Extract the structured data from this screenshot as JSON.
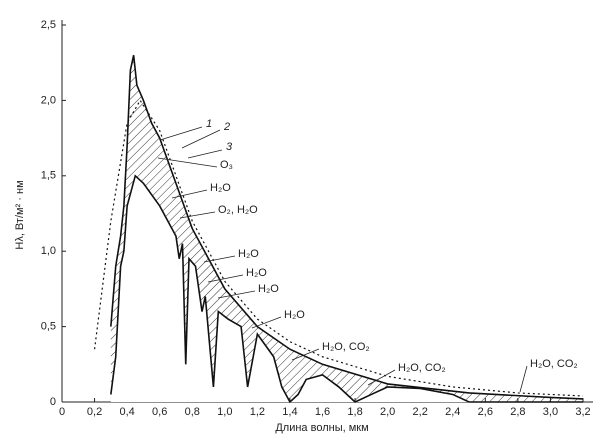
{
  "chart_data": {
    "type": "line",
    "x_label": "Длина волны, мкм",
    "y_label": "Hλ, Вт/м² · нм",
    "xlim": [
      0,
      3.2
    ],
    "ylim": [
      0,
      2.5
    ],
    "xticks": [
      0,
      {
        "value": 0.2,
        "label": "0,2"
      },
      {
        "value": 0.4,
        "label": "0,4"
      },
      {
        "value": 0.6,
        "label": "0,6"
      },
      {
        "value": 0.8,
        "label": "0,8"
      },
      {
        "value": 1.0,
        "label": "1,0"
      },
      {
        "value": 1.2,
        "label": "1,2"
      },
      {
        "value": 1.4,
        "label": "1,4"
      },
      {
        "value": 1.6,
        "label": "1,6"
      },
      {
        "value": 1.8,
        "label": "1,8"
      },
      {
        "value": 2.0,
        "label": "2,0"
      },
      {
        "value": 2.2,
        "label": "2,2"
      },
      {
        "value": 2.4,
        "label": "2,4"
      },
      {
        "value": 2.6,
        "label": "2,6"
      },
      {
        "value": 2.8,
        "label": "2,8"
      },
      {
        "value": 3.0,
        "label": "3,0"
      },
      {
        "value": 3.2,
        "label": "3,2"
      }
    ],
    "yticks": [
      0,
      {
        "value": 0.5,
        "label": "0,5"
      },
      {
        "value": 1.0,
        "label": "1,0"
      },
      {
        "value": 1.5,
        "label": "1,5"
      },
      {
        "value": 2.0,
        "label": "2,0"
      },
      {
        "value": 2.5,
        "label": "2,5"
      }
    ],
    "series": [
      {
        "name": "1",
        "color": "#111",
        "style": "solid",
        "x": [
          0.3,
          0.33,
          0.36,
          0.38,
          0.4,
          0.42,
          0.44,
          0.46,
          0.48,
          0.5,
          0.55,
          0.6,
          0.7,
          0.8,
          0.9,
          1.0,
          1.2,
          1.4,
          1.6,
          2.0,
          2.5,
          3.0,
          3.2
        ],
        "values": [
          0.5,
          0.9,
          1.1,
          1.3,
          1.7,
          2.2,
          2.3,
          2.1,
          2.05,
          2.0,
          1.85,
          1.75,
          1.45,
          1.15,
          0.95,
          0.75,
          0.5,
          0.35,
          0.25,
          0.12,
          0.06,
          0.03,
          0.02
        ]
      },
      {
        "name": "2",
        "color": "#111",
        "style": "dotted",
        "x": [
          0.2,
          0.3,
          0.4,
          0.48,
          0.6,
          0.7,
          0.8,
          1.0,
          1.2,
          1.4,
          1.6,
          2.0,
          2.4,
          2.8,
          3.2
        ],
        "values": [
          0.35,
          1.2,
          1.85,
          2.0,
          1.8,
          1.5,
          1.2,
          0.8,
          0.55,
          0.4,
          0.3,
          0.17,
          0.1,
          0.06,
          0.04
        ]
      },
      {
        "name": "3",
        "color": "#111",
        "style": "solid",
        "x": [
          0.3,
          0.33,
          0.36,
          0.38,
          0.4,
          0.45,
          0.5,
          0.6,
          0.7,
          0.72,
          0.74,
          0.76,
          0.78,
          0.82,
          0.86,
          0.88,
          0.93,
          0.96,
          1.02,
          1.1,
          1.14,
          1.2,
          1.3,
          1.35,
          1.4,
          1.45,
          1.5,
          1.6,
          1.7,
          1.8,
          1.9,
          2.0,
          2.2,
          2.4,
          2.5,
          2.6,
          3.2
        ],
        "values": [
          0.05,
          0.3,
          0.9,
          1.0,
          1.3,
          1.5,
          1.45,
          1.3,
          1.1,
          0.95,
          1.05,
          0.25,
          0.95,
          0.9,
          0.6,
          0.7,
          0.1,
          0.6,
          0.55,
          0.5,
          0.1,
          0.45,
          0.3,
          0.1,
          0,
          0.05,
          0.15,
          0.18,
          0.1,
          0,
          0.05,
          0.1,
          0.09,
          0.05,
          0,
          0,
          0
        ]
      }
    ],
    "annotations": [
      "O₃",
      "H₂O",
      "O₂, H₂O",
      "H₂O",
      "H₂O",
      "H₂O",
      "H₂O",
      "H₂O, CO₂",
      "H₂O, CO₂",
      "H₂O, CO₂"
    ]
  }
}
